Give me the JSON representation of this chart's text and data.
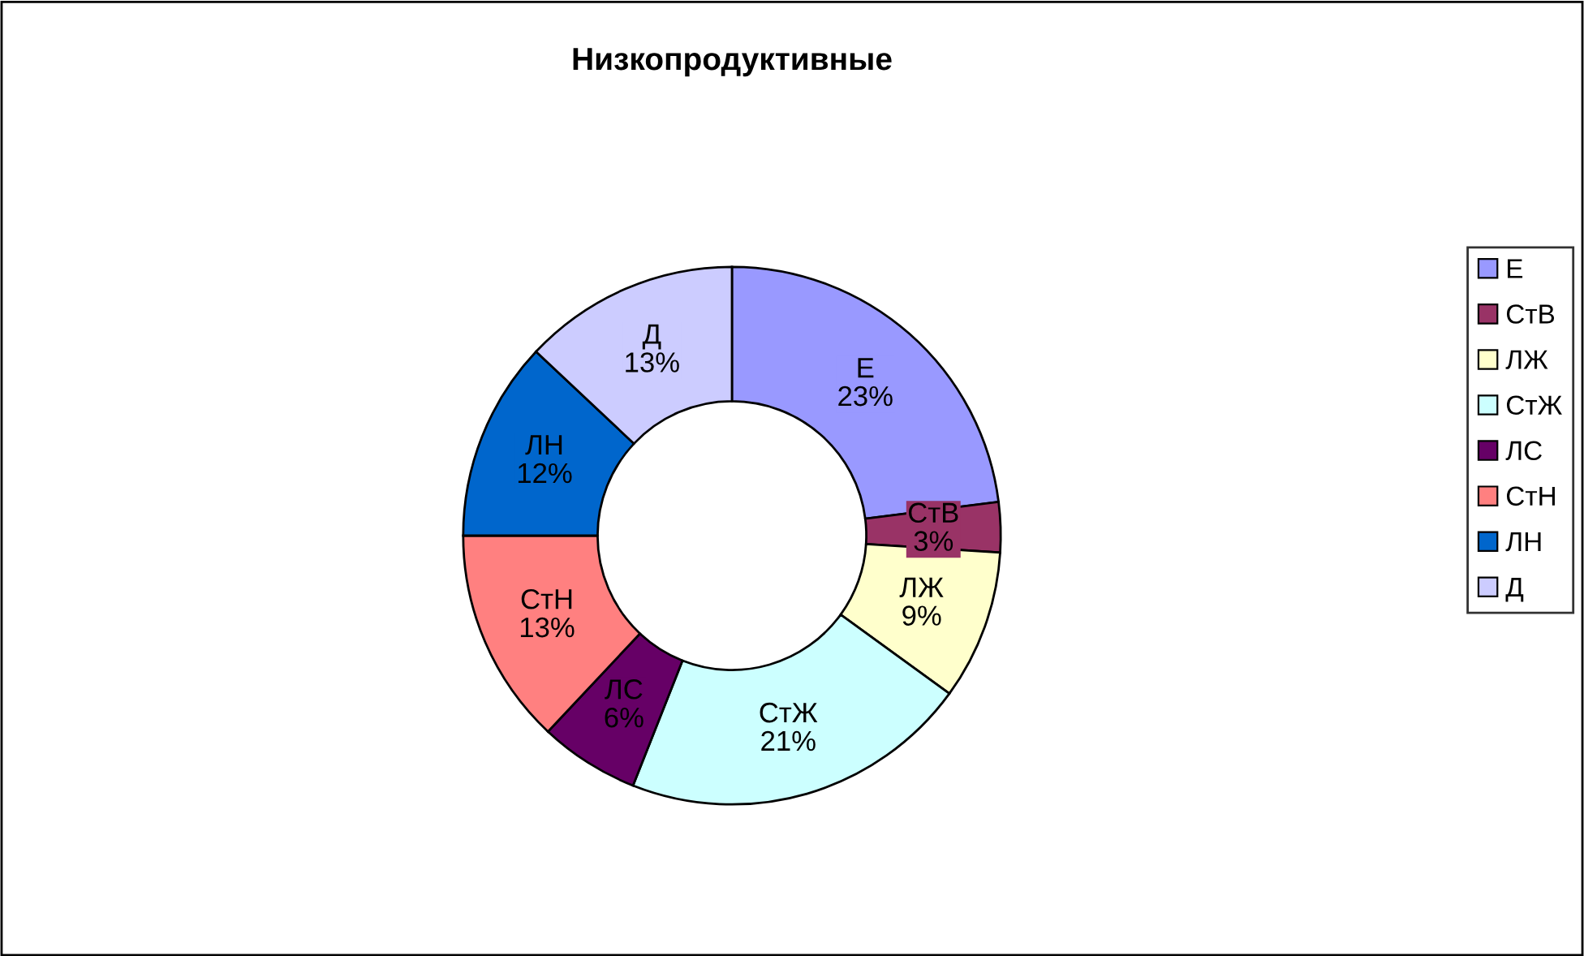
{
  "chart_data": {
    "type": "donut",
    "title": "Низкопродуктивные",
    "categories": [
      "Е",
      "СтВ",
      "ЛЖ",
      "СтЖ",
      "ЛС",
      "СтН",
      "ЛН",
      "Д"
    ],
    "values": [
      23,
      3,
      9,
      21,
      6,
      13,
      12,
      13
    ],
    "value_labels": [
      "23%",
      "3%",
      "9%",
      "21%",
      "6%",
      "13%",
      "12%",
      "13%"
    ],
    "colors": [
      "#9999ff",
      "#993366",
      "#ffffcc",
      "#ccffff",
      "#660066",
      "#ff8080",
      "#0066cc",
      "#ccccff"
    ],
    "legend": "right"
  }
}
